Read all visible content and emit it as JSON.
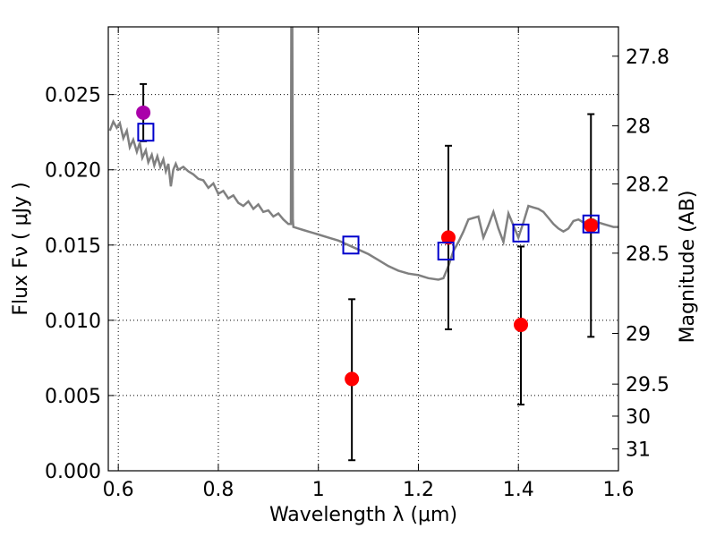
{
  "chart_data": {
    "type": "scatter",
    "title": "",
    "xlabel": "Wavelength  λ (μm)",
    "ylabel": "Flux  Fν  ( μJy )",
    "y2label": "Magnitude (AB)",
    "xlim": [
      0.58,
      1.6
    ],
    "ylim": [
      0.0,
      0.0295
    ],
    "grid": true,
    "x_ticks": [
      0.6,
      0.8,
      1.0,
      1.2,
      1.4,
      1.6
    ],
    "x_tick_labels": [
      "0.6",
      "0.8",
      "1",
      "1.2",
      "1.4",
      "1.6"
    ],
    "y_ticks": [
      0.0,
      0.005,
      0.01,
      0.015,
      0.02,
      0.025
    ],
    "y_tick_labels": [
      "0.000",
      "0.005",
      "0.010",
      "0.015",
      "0.020",
      "0.025"
    ],
    "right_axis_ticks": [
      {
        "label": "27.8",
        "flux": 0.02755
      },
      {
        "label": "28",
        "flux": 0.02292
      },
      {
        "label": "28.2",
        "flux": 0.01906
      },
      {
        "label": "28.5",
        "flux": 0.01446
      },
      {
        "label": "29",
        "flux": 0.00913
      },
      {
        "label": "29.5",
        "flux": 0.00576
      },
      {
        "label": "30",
        "flux": 0.00363
      },
      {
        "label": "31",
        "flux": 0.00145
      }
    ],
    "colors": {
      "model": "#808080",
      "observed": "#ff0000",
      "special_point": "#aa00aa",
      "synthetic": "#0000cc",
      "errorbar": "#000000"
    },
    "series": [
      {
        "values": [
          [
            0.583,
            0.0226
          ],
          [
            0.59,
            0.0232
          ],
          [
            0.597,
            0.0228
          ],
          [
            0.603,
            0.0231
          ],
          [
            0.61,
            0.0221
          ],
          [
            0.617,
            0.0226
          ],
          [
            0.623,
            0.0215
          ],
          [
            0.63,
            0.022
          ],
          [
            0.637,
            0.0212
          ],
          [
            0.643,
            0.0218
          ],
          [
            0.648,
            0.0208
          ],
          [
            0.655,
            0.0213
          ],
          [
            0.66,
            0.0205
          ],
          [
            0.667,
            0.021
          ],
          [
            0.672,
            0.0203
          ],
          [
            0.678,
            0.0209
          ],
          [
            0.684,
            0.0202
          ],
          [
            0.69,
            0.0207
          ],
          [
            0.695,
            0.0199
          ],
          [
            0.7,
            0.0204
          ],
          [
            0.705,
            0.0189
          ],
          [
            0.71,
            0.02
          ],
          [
            0.715,
            0.0204
          ],
          [
            0.72,
            0.02
          ],
          [
            0.73,
            0.0202
          ],
          [
            0.74,
            0.0199
          ],
          [
            0.75,
            0.0197
          ],
          [
            0.76,
            0.0194
          ],
          [
            0.77,
            0.0193
          ],
          [
            0.78,
            0.0188
          ],
          [
            0.79,
            0.0191
          ],
          [
            0.8,
            0.0184
          ],
          [
            0.81,
            0.0186
          ],
          [
            0.82,
            0.0181
          ],
          [
            0.83,
            0.0183
          ],
          [
            0.84,
            0.0178
          ],
          [
            0.85,
            0.0176
          ],
          [
            0.86,
            0.0179
          ],
          [
            0.87,
            0.0174
          ],
          [
            0.88,
            0.0177
          ],
          [
            0.89,
            0.0172
          ],
          [
            0.9,
            0.0173
          ],
          [
            0.91,
            0.0169
          ],
          [
            0.92,
            0.0171
          ],
          [
            0.93,
            0.0167
          ],
          [
            0.94,
            0.0164
          ],
          [
            0.945,
            0.0164
          ],
          [
            0.946,
            0.0295
          ],
          [
            0.948,
            0.0295
          ],
          [
            0.949,
            0.0167
          ],
          [
            0.95,
            0.0162
          ],
          [
            0.96,
            0.0161
          ],
          [
            0.97,
            0.016
          ],
          [
            0.98,
            0.0159
          ],
          [
            0.99,
            0.0158
          ],
          [
            1.0,
            0.0157
          ],
          [
            1.02,
            0.0155
          ],
          [
            1.04,
            0.0153
          ],
          [
            1.06,
            0.015
          ],
          [
            1.08,
            0.0147
          ],
          [
            1.1,
            0.0144
          ],
          [
            1.12,
            0.014
          ],
          [
            1.14,
            0.0136
          ],
          [
            1.16,
            0.0133
          ],
          [
            1.18,
            0.0131
          ],
          [
            1.2,
            0.013
          ],
          [
            1.22,
            0.0128
          ],
          [
            1.24,
            0.0127
          ],
          [
            1.25,
            0.0128
          ],
          [
            1.26,
            0.0136
          ],
          [
            1.27,
            0.0146
          ],
          [
            1.28,
            0.0152
          ],
          [
            1.29,
            0.0159
          ],
          [
            1.3,
            0.0167
          ],
          [
            1.31,
            0.0168
          ],
          [
            1.32,
            0.0169
          ],
          [
            1.33,
            0.0155
          ],
          [
            1.34,
            0.0163
          ],
          [
            1.35,
            0.0172
          ],
          [
            1.36,
            0.0161
          ],
          [
            1.37,
            0.0152
          ],
          [
            1.38,
            0.0171
          ],
          [
            1.39,
            0.0163
          ],
          [
            1.4,
            0.0155
          ],
          [
            1.41,
            0.0165
          ],
          [
            1.42,
            0.0176
          ],
          [
            1.43,
            0.0175
          ],
          [
            1.44,
            0.0174
          ],
          [
            1.45,
            0.0172
          ],
          [
            1.46,
            0.0168
          ],
          [
            1.47,
            0.0164
          ],
          [
            1.48,
            0.0161
          ],
          [
            1.49,
            0.0159
          ],
          [
            1.5,
            0.0161
          ],
          [
            1.51,
            0.0166
          ],
          [
            1.52,
            0.0167
          ],
          [
            1.53,
            0.0165
          ],
          [
            1.54,
            0.0166
          ],
          [
            1.55,
            0.0167
          ],
          [
            1.56,
            0.0165
          ],
          [
            1.57,
            0.0164
          ],
          [
            1.58,
            0.0163
          ],
          [
            1.59,
            0.0162
          ],
          [
            1.6,
            0.0162
          ]
        ]
      },
      {
        "x": [
          0.65,
          1.067,
          1.26,
          1.405,
          1.545
        ],
        "y": [
          0.0238,
          0.0061,
          0.0155,
          0.0097,
          0.0163
        ],
        "err_low": [
          0.0219,
          0.0007,
          0.0094,
          0.0044,
          0.0089
        ],
        "err_high": [
          0.0257,
          0.0114,
          0.0216,
          0.0149,
          0.0237
        ]
      },
      {
        "x": [
          0.655,
          1.065,
          1.255,
          1.405,
          1.545
        ],
        "y": [
          0.0225,
          0.015,
          0.0146,
          0.0158,
          0.0164
        ]
      }
    ]
  }
}
